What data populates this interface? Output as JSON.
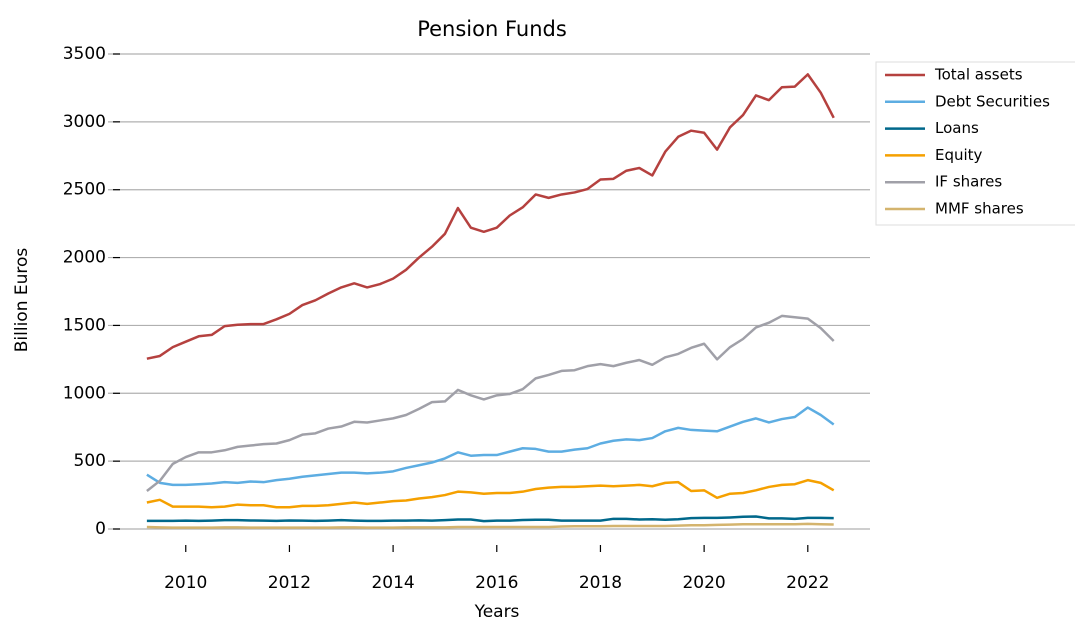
{
  "chart_data": {
    "type": "line",
    "title": "Pension Funds",
    "x_label": "Years",
    "y_label": "Billion Euros",
    "x": [
      2009.25,
      2009.5,
      2009.75,
      2010,
      2010.25,
      2010.5,
      2010.75,
      2011,
      2011.25,
      2011.5,
      2011.75,
      2012,
      2012.25,
      2012.5,
      2012.75,
      2013,
      2013.25,
      2013.5,
      2013.75,
      2014,
      2014.25,
      2014.5,
      2014.75,
      2015,
      2015.25,
      2015.5,
      2015.75,
      2016,
      2016.25,
      2016.5,
      2016.75,
      2017,
      2017.25,
      2017.5,
      2017.75,
      2018,
      2018.25,
      2018.5,
      2018.75,
      2019,
      2019.25,
      2019.5,
      2019.75,
      2020,
      2020.25,
      2020.5,
      2020.75,
      2021,
      2021.25,
      2021.5,
      2021.75,
      2022,
      2022.25,
      2022.5
    ],
    "series": [
      {
        "name": "Total assets",
        "color": "#b5413f",
        "values": [
          1255,
          1275,
          1340,
          1380,
          1420,
          1430,
          1495,
          1505,
          1510,
          1510,
          1545,
          1585,
          1650,
          1685,
          1735,
          1780,
          1810,
          1780,
          1805,
          1845,
          1910,
          2000,
          2080,
          2175,
          2365,
          2220,
          2190,
          2220,
          2310,
          2370,
          2465,
          2440,
          2465,
          2480,
          2505,
          2575,
          2580,
          2640,
          2660,
          2605,
          2780,
          2890,
          2935,
          2920,
          2795,
          2960,
          3050,
          3195,
          3160,
          3255,
          3260,
          3350,
          3215,
          3030
        ]
      },
      {
        "name": "Debt Securities",
        "color": "#5dade2",
        "values": [
          400,
          340,
          325,
          325,
          330,
          335,
          345,
          340,
          350,
          345,
          360,
          370,
          385,
          395,
          405,
          415,
          415,
          410,
          415,
          425,
          450,
          470,
          490,
          520,
          565,
          540,
          545,
          545,
          570,
          595,
          590,
          570,
          570,
          585,
          595,
          630,
          650,
          660,
          655,
          670,
          720,
          745,
          730,
          725,
          720,
          755,
          790,
          815,
          785,
          810,
          825,
          895,
          840,
          770
        ]
      },
      {
        "name": "Loans",
        "color": "#00688b",
        "values": [
          60,
          60,
          60,
          62,
          60,
          62,
          65,
          65,
          63,
          62,
          60,
          63,
          62,
          60,
          62,
          65,
          62,
          60,
          60,
          62,
          62,
          64,
          62,
          65,
          70,
          70,
          58,
          62,
          62,
          66,
          68,
          68,
          62,
          62,
          62,
          62,
          75,
          75,
          70,
          72,
          68,
          72,
          80,
          82,
          82,
          85,
          90,
          92,
          78,
          78,
          75,
          82,
          82,
          80
        ]
      },
      {
        "name": "Equity",
        "color": "#f5a000",
        "values": [
          195,
          215,
          165,
          165,
          165,
          160,
          165,
          180,
          175,
          175,
          160,
          160,
          170,
          170,
          175,
          185,
          195,
          185,
          195,
          205,
          210,
          225,
          235,
          250,
          275,
          270,
          260,
          265,
          265,
          275,
          295,
          305,
          310,
          310,
          315,
          320,
          315,
          320,
          325,
          315,
          340,
          345,
          280,
          285,
          230,
          260,
          265,
          285,
          310,
          325,
          330,
          360,
          340,
          285
        ]
      },
      {
        "name": "IF shares",
        "color": "#a0a0a8",
        "values": [
          280,
          355,
          480,
          530,
          565,
          565,
          580,
          605,
          615,
          625,
          630,
          655,
          695,
          705,
          740,
          755,
          790,
          785,
          800,
          815,
          840,
          885,
          935,
          940,
          1025,
          985,
          955,
          985,
          995,
          1030,
          1110,
          1135,
          1165,
          1170,
          1200,
          1215,
          1200,
          1225,
          1245,
          1210,
          1265,
          1290,
          1335,
          1365,
          1250,
          1340,
          1400,
          1485,
          1520,
          1570,
          1560,
          1550,
          1480,
          1385
        ]
      },
      {
        "name": "MMF shares",
        "color": "#d4b46e",
        "values": [
          15,
          12,
          10,
          10,
          10,
          10,
          12,
          12,
          10,
          10,
          10,
          10,
          10,
          10,
          10,
          12,
          12,
          10,
          10,
          10,
          12,
          12,
          12,
          12,
          15,
          15,
          15,
          15,
          15,
          15,
          15,
          15,
          18,
          20,
          20,
          20,
          22,
          22,
          22,
          22,
          22,
          25,
          28,
          28,
          30,
          32,
          35,
          35,
          35,
          35,
          35,
          38,
          35,
          33
        ]
      }
    ],
    "xlim": [
      2008.5,
      2023.2
    ],
    "xticks": [
      2010,
      2012,
      2014,
      2016,
      2018,
      2020,
      2022
    ],
    "ylim": [
      0,
      3500
    ],
    "yticks": [
      0,
      500,
      1000,
      1500,
      2000,
      2500,
      3000,
      3500
    ],
    "grid": true,
    "legend": "upper right"
  }
}
